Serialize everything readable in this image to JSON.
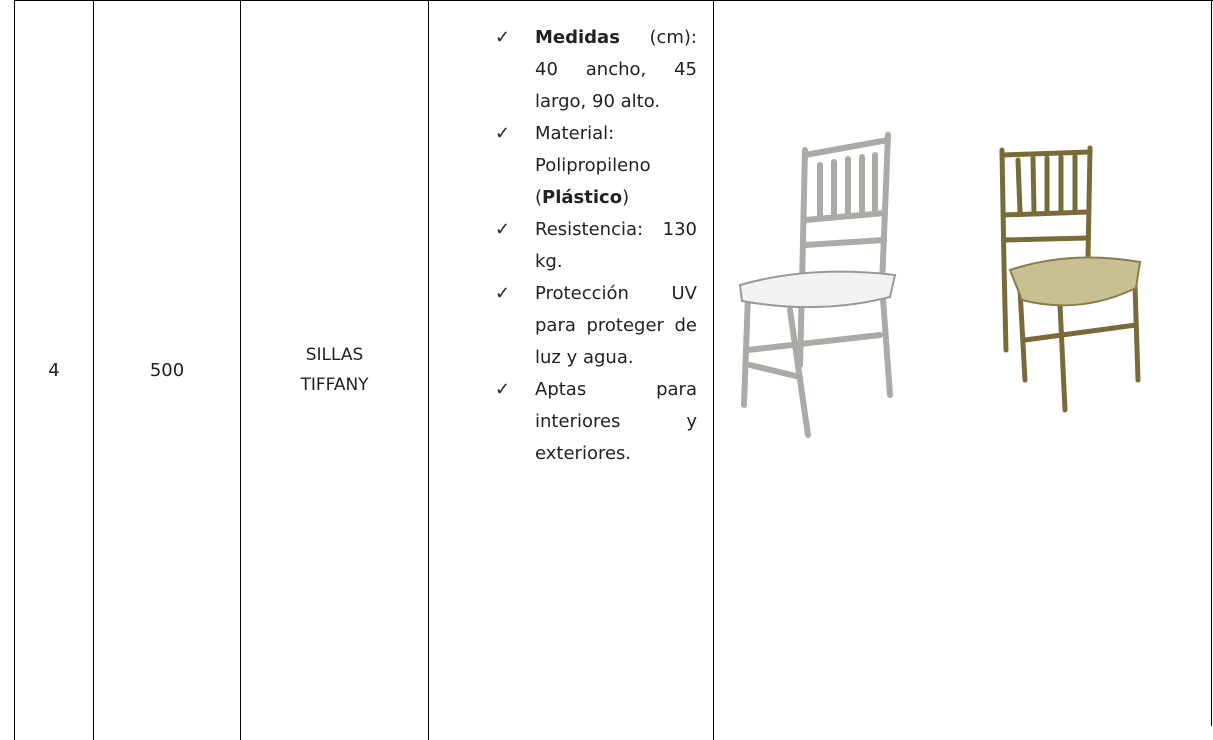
{
  "table": {
    "rows": [
      {
        "cells": [
          "4",
          "500",
          "SILLAS TIFFANY"
        ],
        "bullets": [
          [
            "Medidas",
            " (cm): 40 ancho, 45 largo, 90 alto."
          ],
          [
            "Material: Polipropileno (",
            "Plástico",
            ")"
          ],
          [
            "Resistencia: 130 kg."
          ],
          [
            "Protección UV para proteger de luz y agua."
          ],
          [
            "Aptas para interiores y exteriores."
          ]
        ]
      }
    ]
  }
}
